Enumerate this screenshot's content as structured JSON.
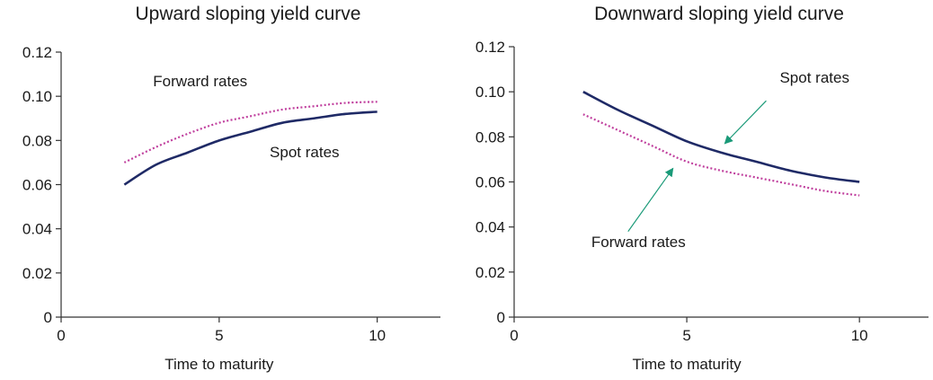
{
  "chart_data": [
    {
      "type": "line",
      "title": "Upward sloping yield curve",
      "xlabel": "Time to maturity",
      "ylabel": "",
      "xlim": [
        0,
        12
      ],
      "ylim": [
        0,
        0.12
      ],
      "xticks": [
        "0",
        "5",
        "10"
      ],
      "xtick_values": [
        0,
        5,
        10
      ],
      "yticks": [
        "0",
        "0.02",
        "0.04",
        "0.06",
        "0.08",
        "0.10",
        "0.12"
      ],
      "ytick_values": [
        0,
        0.02,
        0.04,
        0.06,
        0.08,
        0.1,
        0.12
      ],
      "grid": false,
      "series": [
        {
          "name": "Forward rates",
          "style": "dotted",
          "color": "#c0409e",
          "x": [
            2,
            3,
            4,
            5,
            6,
            7,
            8,
            9,
            10
          ],
          "y": [
            0.07,
            0.077,
            0.083,
            0.088,
            0.091,
            0.094,
            0.0955,
            0.097,
            0.0975
          ]
        },
        {
          "name": "Spot rates",
          "style": "solid",
          "color": "#1f2a66",
          "x": [
            2,
            3,
            4,
            5,
            6,
            7,
            8,
            9,
            10
          ],
          "y": [
            0.06,
            0.069,
            0.0745,
            0.08,
            0.084,
            0.088,
            0.09,
            0.092,
            0.093
          ]
        }
      ],
      "annotations": [
        {
          "text": "Forward rates",
          "x": 4.4,
          "y": 0.1045,
          "arrow": false
        },
        {
          "text": "Spot rates",
          "x": 7.7,
          "y": 0.0725,
          "arrow": false
        }
      ]
    },
    {
      "type": "line",
      "title": "Downward sloping yield curve",
      "xlabel": "Time to maturity",
      "ylabel": "",
      "xlim": [
        0,
        12
      ],
      "ylim": [
        0,
        0.12
      ],
      "xticks": [
        "0",
        "5",
        "10"
      ],
      "xtick_values": [
        0,
        5,
        10
      ],
      "yticks": [
        "0",
        "0.02",
        "0.04",
        "0.06",
        "0.08",
        "0.10",
        "0.12"
      ],
      "ytick_values": [
        0,
        0.02,
        0.04,
        0.06,
        0.08,
        0.1,
        0.12
      ],
      "grid": false,
      "series": [
        {
          "name": "Spot rates",
          "style": "solid",
          "color": "#1f2a66",
          "x": [
            2,
            3,
            4,
            5,
            6,
            7,
            8,
            9,
            10
          ],
          "y": [
            0.1,
            0.092,
            0.085,
            0.078,
            0.073,
            0.069,
            0.065,
            0.062,
            0.06
          ]
        },
        {
          "name": "Forward rates",
          "style": "dotted",
          "color": "#c0409e",
          "x": [
            2,
            3,
            4,
            5,
            6,
            7,
            8,
            9,
            10
          ],
          "y": [
            0.09,
            0.083,
            0.076,
            0.069,
            0.065,
            0.062,
            0.059,
            0.056,
            0.054
          ]
        }
      ],
      "annotations": [
        {
          "text": "Spot rates",
          "x": 8.7,
          "y": 0.104,
          "arrow": true,
          "arrow_from": [
            7.3,
            0.096
          ],
          "arrow_to": [
            6.1,
            0.077
          ],
          "arrow_color": "#1a9a78"
        },
        {
          "text": "Forward rates",
          "x": 3.6,
          "y": 0.031,
          "arrow": true,
          "arrow_from": [
            3.3,
            0.038
          ],
          "arrow_to": [
            4.6,
            0.066
          ],
          "arrow_color": "#1a9a78"
        }
      ]
    }
  ]
}
